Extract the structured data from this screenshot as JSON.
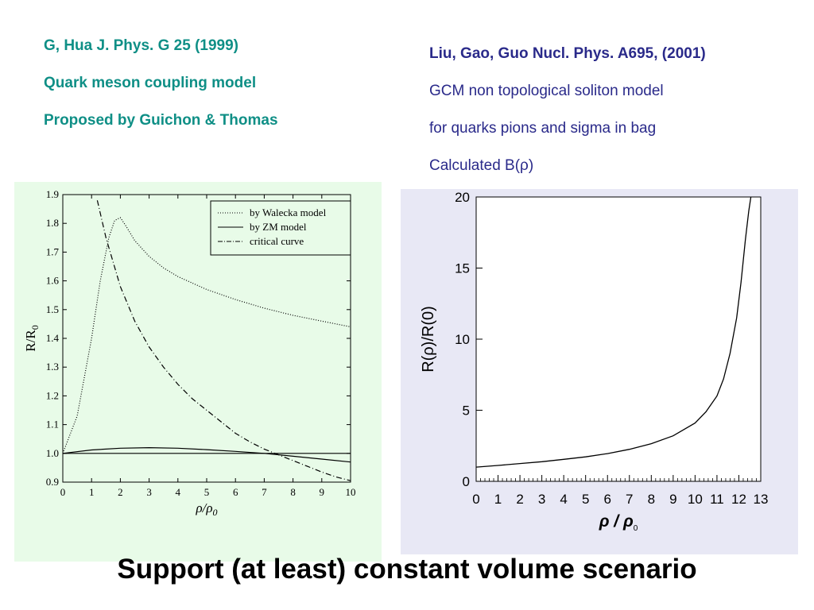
{
  "left_reference": {
    "line1": "G, Hua J. Phys. G 25 (1999)",
    "line2": "Quark meson coupling model",
    "line3": "Proposed by Guichon & Thomas"
  },
  "right_reference": {
    "line1": "Liu, Gao, Guo Nucl. Phys. A695, (2001)",
    "line2": "GCM non topological soliton model",
    "line3": "for quarks pions and sigma in bag",
    "line4": "Calculated B(ρ)"
  },
  "headline": "Support (at least) constant volume scenario",
  "colors": {
    "left_text": "#0f8f86",
    "right_text": "#2a2a8a",
    "left_panel_bg": "#e8fbe8",
    "right_panel_bg": "#e8e8f5"
  },
  "chart_data": [
    {
      "type": "line",
      "xlabel": "ρ/ρ0",
      "ylabel": "R/R0",
      "xlim": [
        0,
        10
      ],
      "ylim": [
        0.9,
        1.9
      ],
      "x_ticks": [
        "0",
        "1",
        "2",
        "3",
        "4",
        "5",
        "6",
        "7",
        "8",
        "9",
        "10"
      ],
      "y_ticks": [
        "0.9",
        "1.0",
        "1.1",
        "1.2",
        "1.3",
        "1.4",
        "1.5",
        "1.6",
        "1.7",
        "1.8",
        "1.9"
      ],
      "legend_position": "top-right",
      "series": [
        {
          "name": "by Walecka model",
          "style": "dotted",
          "x": [
            0,
            0.5,
            1,
            1.3,
            1.6,
            1.8,
            2,
            2.2,
            2.5,
            3,
            3.5,
            4,
            5,
            6,
            7,
            8,
            9,
            10
          ],
          "y": [
            1.0,
            1.13,
            1.4,
            1.6,
            1.75,
            1.81,
            1.82,
            1.79,
            1.74,
            1.685,
            1.645,
            1.615,
            1.57,
            1.535,
            1.505,
            1.48,
            1.46,
            1.44
          ]
        },
        {
          "name": "by ZM model",
          "style": "solid",
          "x": [
            0,
            1,
            2,
            3,
            4,
            5,
            6,
            7,
            8,
            9,
            10
          ],
          "y": [
            1.0,
            1.012,
            1.018,
            1.02,
            1.018,
            1.013,
            1.007,
            1.0,
            0.99,
            0.98,
            0.97
          ]
        },
        {
          "name": "",
          "style": "solid-flat",
          "x": [
            0,
            10
          ],
          "y": [
            1.0,
            1.0
          ]
        },
        {
          "name": "critical curve",
          "style": "dashdot",
          "x": [
            1.2,
            1.5,
            2,
            2.5,
            3,
            3.5,
            4,
            4.5,
            5,
            5.5,
            6,
            6.5,
            7,
            7.5,
            8,
            8.5,
            9,
            9.5,
            10
          ],
          "y": [
            1.88,
            1.75,
            1.58,
            1.46,
            1.37,
            1.3,
            1.24,
            1.19,
            1.15,
            1.11,
            1.07,
            1.04,
            1.015,
            0.995,
            0.975,
            0.955,
            0.935,
            0.918,
            0.905
          ]
        }
      ]
    },
    {
      "type": "line",
      "xlabel": "ρ / ρ0",
      "ylabel": "R(ρ)/R(0)",
      "xlim": [
        0,
        13
      ],
      "ylim": [
        0,
        20
      ],
      "x_ticks": [
        "0",
        "1",
        "2",
        "3",
        "4",
        "5",
        "6",
        "7",
        "8",
        "9",
        "10",
        "11",
        "12",
        "13"
      ],
      "y_ticks": [
        "0",
        "5",
        "10",
        "15",
        "20"
      ],
      "series": [
        {
          "name": "",
          "x": [
            0,
            1,
            2,
            3,
            4,
            5,
            6,
            7,
            8,
            9,
            10,
            10.5,
            11,
            11.3,
            11.6,
            11.9,
            12.1,
            12.3,
            12.45,
            12.55
          ],
          "y": [
            1.0,
            1.12,
            1.25,
            1.38,
            1.55,
            1.72,
            1.95,
            2.25,
            2.65,
            3.2,
            4.1,
            4.9,
            6.0,
            7.2,
            9.0,
            11.5,
            14.0,
            17.0,
            19.0,
            20.0
          ]
        }
      ]
    }
  ]
}
